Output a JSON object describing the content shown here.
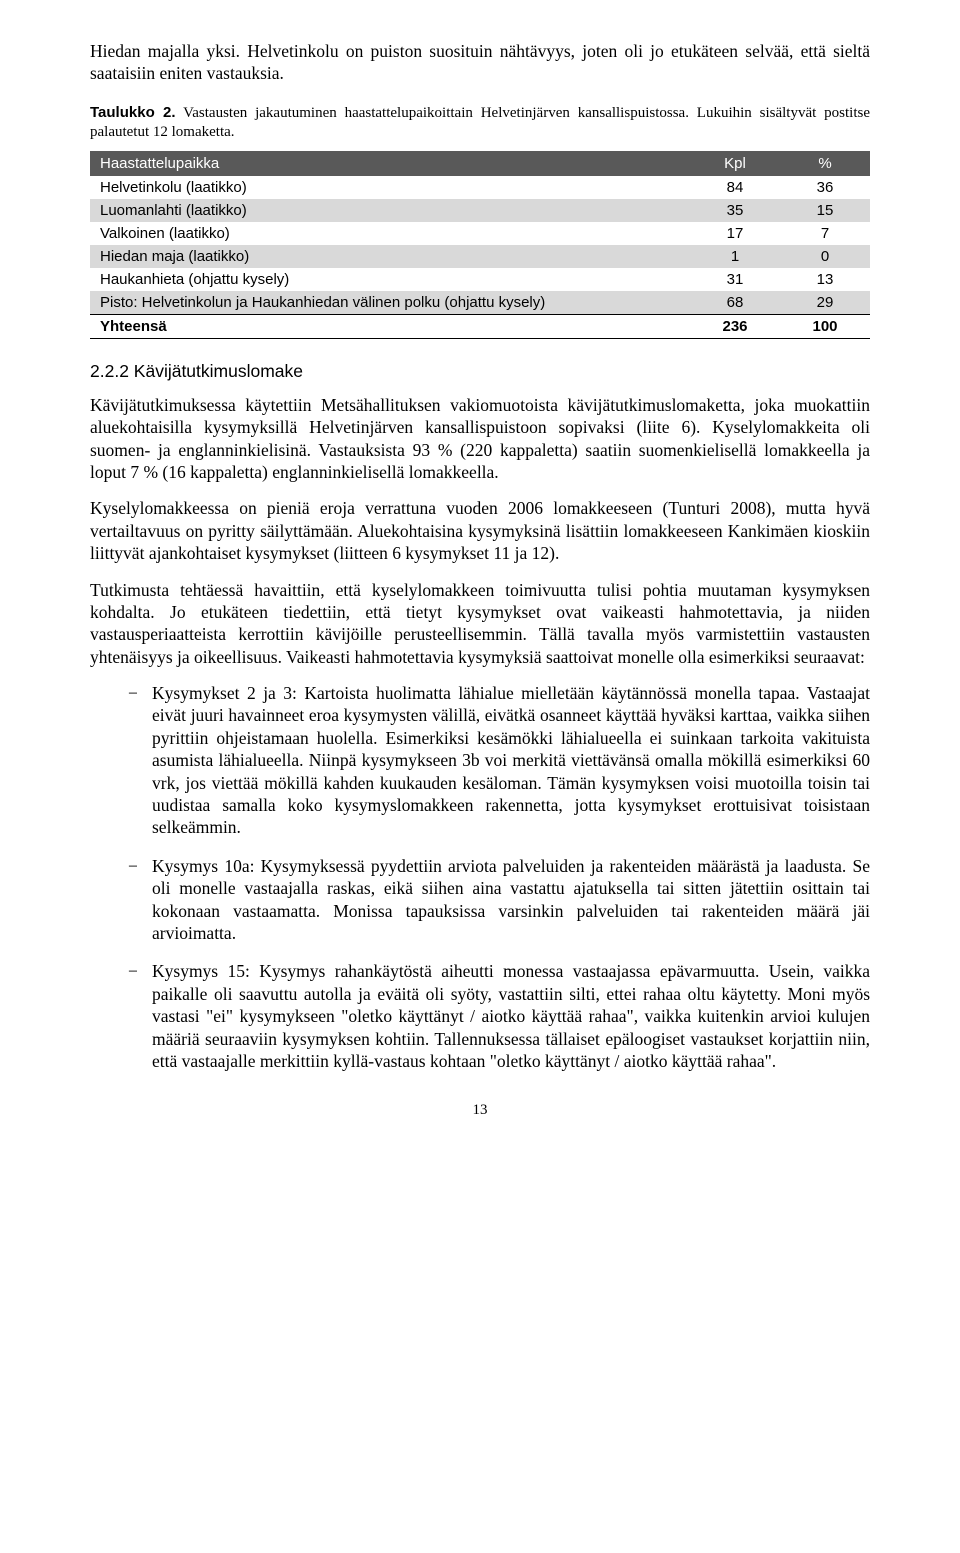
{
  "intro_paragraph": "Hiedan majalla yksi. Helvetinkolu on puiston suosituin nähtävyys, joten oli jo etukäteen selvää, että sieltä saataisiin eniten vastauksia.",
  "table_caption": {
    "label": "Taulukko 2.",
    "text": "Vastausten jakautuminen haastattelupaikoittain Helvetinjärven kansallispuistossa. Lukuihin sisältyvät postitse palautetut 12 lomaketta."
  },
  "table": {
    "columns": [
      "Haastattelupaikka",
      "Kpl",
      "%"
    ],
    "rows": [
      {
        "label": "Helvetinkolu (laatikko)",
        "kpl": "84",
        "pct": "36",
        "alt": false
      },
      {
        "label": "Luomanlahti (laatikko)",
        "kpl": "35",
        "pct": "15",
        "alt": true
      },
      {
        "label": "Valkoinen (laatikko)",
        "kpl": "17",
        "pct": "7",
        "alt": false
      },
      {
        "label": "Hiedan maja (laatikko)",
        "kpl": "1",
        "pct": "0",
        "alt": true
      },
      {
        "label": "Haukanhieta (ohjattu kysely)",
        "kpl": "31",
        "pct": "13",
        "alt": false
      },
      {
        "label": "Pisto: Helvetinkolun ja Haukanhiedan välinen polku (ohjattu kysely)",
        "kpl": "68",
        "pct": "29",
        "alt": true
      }
    ],
    "total": {
      "label": "Yhteensä",
      "kpl": "236",
      "pct": "100"
    },
    "header_bg": "#595959",
    "header_fg": "#ffffff",
    "alt_bg": "#d9d9d9"
  },
  "section_heading": "2.2.2 Kävijätutkimuslomake",
  "body_paragraphs": [
    "Kävijätutkimuksessa käytettiin Metsähallituksen vakiomuotoista kävijätutkimuslomaketta, joka muokattiin aluekohtaisilla kysymyksillä Helvetinjärven kansallispuistoon sopivaksi (liite 6). Kyselylomakkeita oli suomen- ja englanninkielisinä. Vastauksista 93 % (220 kappaletta) saatiin suomenkielisellä lomakkeella ja loput 7 % (16 kappaletta) englanninkielisellä lomakkeella.",
    "Kyselylomakkeessa on pieniä eroja verrattuna vuoden 2006 lomakkeeseen (Tunturi 2008), mutta hyvä vertailtavuus on pyritty säilyttämään. Aluekohtaisina kysymyksinä lisättiin lomakkeeseen Kankimäen kioskiin liittyvät ajankohtaiset kysymykset (liitteen 6 kysymykset 11 ja 12).",
    "Tutkimusta tehtäessä havaittiin, että kyselylomakkeen toimivuutta tulisi pohtia muutaman kysymyksen kohdalta. Jo etukäteen tiedettiin, että tietyt kysymykset ovat vaikeasti hahmotettavia, ja niiden vastausperiaatteista kerrottiin kävijöille perusteellisemmin. Tällä tavalla myös varmistettiin vastausten yhtenäisyys ja oikeellisuus. Vaikeasti hahmotettavia kysymyksiä saattoivat monelle olla esimerkiksi seuraavat:"
  ],
  "bullets": [
    "Kysymykset 2 ja 3: Kartoista huolimatta lähialue mielletään käytännössä monella tapaa. Vastaajat eivät juuri havainneet eroa kysymysten välillä, eivätkä osanneet käyttää hyväksi karttaa, vaikka siihen pyrittiin ohjeistamaan huolella. Esimerkiksi kesämökki lähialueella ei suinkaan tarkoita vakituista asumista lähialueella. Niinpä kysymykseen 3b voi merkitä viettävänsä omalla mökillä esimerkiksi 60 vrk, jos viettää mökillä kahden kuukauden kesäloman. Tämän kysymyksen voisi muotoilla toisin tai uudistaa samalla koko kysymyslomakkeen rakennetta, jotta kysymykset erottuisivat toisistaan selkeämmin.",
    "Kysymys 10a: Kysymyksessä pyydettiin arviota palveluiden ja rakenteiden määrästä ja laadusta. Se oli monelle vastaajalla raskas, eikä siihen aina vastattu ajatuksella tai sitten jätettiin osittain tai kokonaan vastaamatta. Monissa tapauksissa varsinkin palveluiden tai rakenteiden määrä jäi arvioimatta.",
    "Kysymys 15: Kysymys rahankäytöstä aiheutti monessa vastaajassa epävarmuutta. Usein, vaikka paikalle oli saavuttu autolla ja eväitä oli syöty, vastattiin silti, ettei rahaa oltu käytetty. Moni myös vastasi \"ei\" kysymykseen \"oletko käyttänyt / aiotko käyttää rahaa\", vaikka kuitenkin arvioi kulujen määriä seuraaviin kysymyksen kohtiin. Tallennuksessa tällaiset epäloogiset vastaukset korjattiin niin, että vastaajalle merkittiin kyllä-vastaus kohtaan \"oletko käyttänyt / aiotko käyttää rahaa\"."
  ],
  "page_number": "13"
}
